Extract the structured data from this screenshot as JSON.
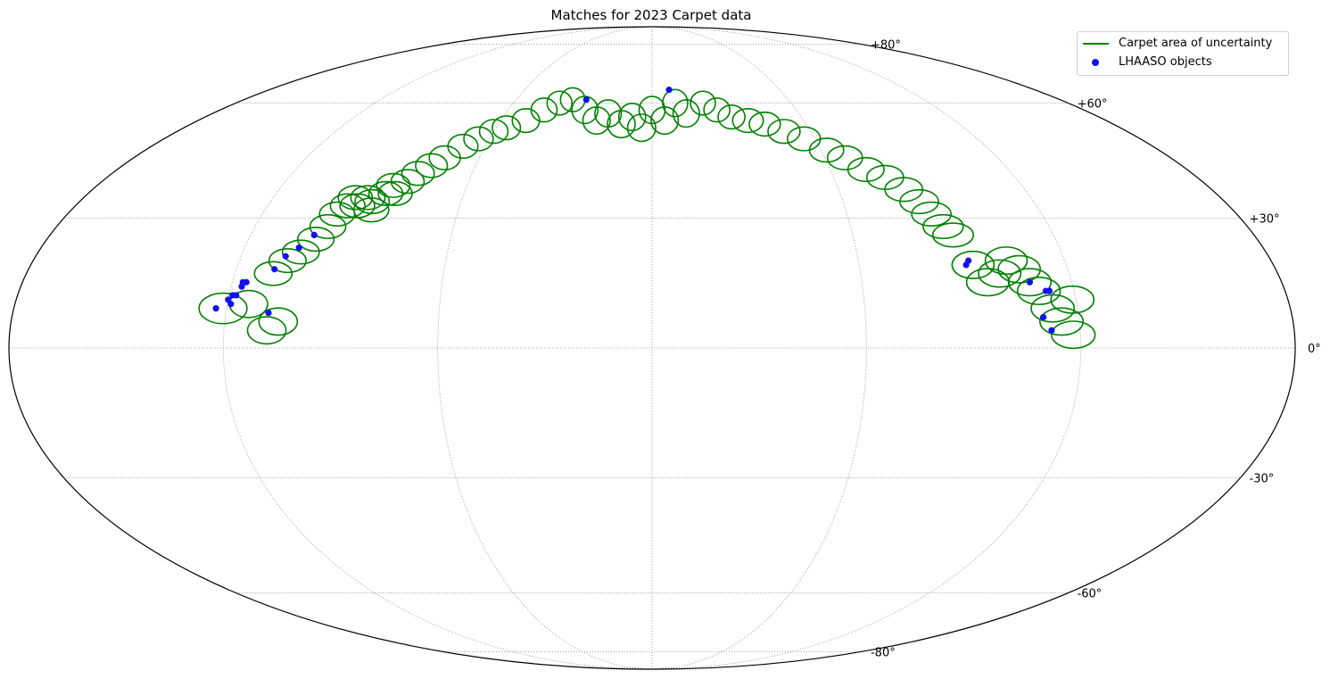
{
  "chart_data": {
    "type": "scatter",
    "projection": "mollweide",
    "title": "Matches for 2023 Carpet data",
    "lat_ticks": [
      "+80°",
      "+60°",
      "+30°",
      "0°",
      "-30°",
      "-60°",
      "-80°"
    ],
    "lat_tick_values": [
      80,
      60,
      30,
      0,
      -30,
      -60,
      -80
    ],
    "lon_gridlines_deg": [
      -180,
      -120,
      -60,
      0,
      60,
      120,
      180
    ],
    "grid": true,
    "legend_position": "top-right",
    "series": [
      {
        "name": "Carpet area of uncertainty",
        "kind": "ellipse",
        "color": "#008000",
        "ellipses": [
          {
            "lon": -121,
            "lat": 9,
            "w": 10,
            "h": 9
          },
          {
            "lon": -114,
            "lat": 10,
            "w": 8,
            "h": 8
          },
          {
            "lon": -105,
            "lat": 6,
            "w": 8,
            "h": 8
          },
          {
            "lon": -108,
            "lat": 4,
            "w": 8,
            "h": 8
          },
          {
            "lon": -109,
            "lat": 17,
            "w": 8,
            "h": 7
          },
          {
            "lon": -106,
            "lat": 20,
            "w": 8,
            "h": 7
          },
          {
            "lon": -103,
            "lat": 22,
            "w": 8,
            "h": 7
          },
          {
            "lon": -100,
            "lat": 25,
            "w": 8,
            "h": 7
          },
          {
            "lon": -98,
            "lat": 28,
            "w": 8,
            "h": 7
          },
          {
            "lon": -97,
            "lat": 31,
            "w": 8,
            "h": 7
          },
          {
            "lon": -95,
            "lat": 33,
            "w": 8,
            "h": 7
          },
          {
            "lon": -94,
            "lat": 35,
            "w": 8,
            "h": 7
          },
          {
            "lon": -92,
            "lat": 33,
            "w": 8,
            "h": 7
          },
          {
            "lon": -90,
            "lat": 35,
            "w": 8,
            "h": 7
          },
          {
            "lon": -88,
            "lat": 34,
            "w": 8,
            "h": 7
          },
          {
            "lon": -87,
            "lat": 32,
            "w": 8,
            "h": 7
          },
          {
            "lon": -85,
            "lat": 36,
            "w": 8,
            "h": 7
          },
          {
            "lon": -84,
            "lat": 38,
            "w": 8,
            "h": 7
          },
          {
            "lon": -82,
            "lat": 36,
            "w": 8,
            "h": 7
          },
          {
            "lon": -80,
            "lat": 39,
            "w": 8,
            "h": 7
          },
          {
            "lon": -78,
            "lat": 41,
            "w": 8,
            "h": 7
          },
          {
            "lon": -75,
            "lat": 43,
            "w": 8,
            "h": 7
          },
          {
            "lon": -72,
            "lat": 45,
            "w": 8,
            "h": 7
          },
          {
            "lon": -68,
            "lat": 48,
            "w": 8,
            "h": 7
          },
          {
            "lon": -64,
            "lat": 50,
            "w": 8,
            "h": 7
          },
          {
            "lon": -60,
            "lat": 52,
            "w": 8,
            "h": 7
          },
          {
            "lon": -56,
            "lat": 53,
            "w": 8,
            "h": 7
          },
          {
            "lon": -50,
            "lat": 55,
            "w": 8,
            "h": 7
          },
          {
            "lon": -45,
            "lat": 58,
            "w": 8,
            "h": 7
          },
          {
            "lon": -40,
            "lat": 60,
            "w": 8,
            "h": 7
          },
          {
            "lon": -35,
            "lat": 61,
            "w": 8,
            "h": 7
          },
          {
            "lon": -28,
            "lat": 58,
            "w": 8,
            "h": 8
          },
          {
            "lon": -22,
            "lat": 55,
            "w": 8,
            "h": 8
          },
          {
            "lon": -18,
            "lat": 57,
            "w": 8,
            "h": 8
          },
          {
            "lon": -12,
            "lat": 54,
            "w": 8,
            "h": 8
          },
          {
            "lon": -8,
            "lat": 56,
            "w": 8,
            "h": 8
          },
          {
            "lon": -4,
            "lat": 53,
            "w": 8,
            "h": 8
          },
          {
            "lon": 0,
            "lat": 58,
            "w": 8,
            "h": 8
          },
          {
            "lon": 5,
            "lat": 55,
            "w": 8,
            "h": 8
          },
          {
            "lon": 10,
            "lat": 60,
            "w": 8,
            "h": 8
          },
          {
            "lon": 14,
            "lat": 57,
            "w": 8,
            "h": 8
          },
          {
            "lon": 22,
            "lat": 60,
            "w": 8,
            "h": 7
          },
          {
            "lon": 27,
            "lat": 58,
            "w": 8,
            "h": 7
          },
          {
            "lon": 32,
            "lat": 56,
            "w": 8,
            "h": 7
          },
          {
            "lon": 38,
            "lat": 55,
            "w": 9,
            "h": 7
          },
          {
            "lon": 44,
            "lat": 54,
            "w": 9,
            "h": 7
          },
          {
            "lon": 50,
            "lat": 52,
            "w": 9,
            "h": 7
          },
          {
            "lon": 56,
            "lat": 50,
            "w": 9,
            "h": 7
          },
          {
            "lon": 62,
            "lat": 47,
            "w": 9,
            "h": 7
          },
          {
            "lon": 67,
            "lat": 45,
            "w": 9,
            "h": 7
          },
          {
            "lon": 72,
            "lat": 42,
            "w": 9,
            "h": 7
          },
          {
            "lon": 77,
            "lat": 40,
            "w": 9,
            "h": 7
          },
          {
            "lon": 81,
            "lat": 37,
            "w": 9,
            "h": 7
          },
          {
            "lon": 84,
            "lat": 34,
            "w": 9,
            "h": 7
          },
          {
            "lon": 86,
            "lat": 31,
            "w": 9,
            "h": 7
          },
          {
            "lon": 88,
            "lat": 28,
            "w": 9,
            "h": 7
          },
          {
            "lon": 90,
            "lat": 26,
            "w": 9,
            "h": 7
          },
          {
            "lon": 93,
            "lat": 19,
            "w": 9,
            "h": 8
          },
          {
            "lon": 96,
            "lat": 15,
            "w": 9,
            "h": 8
          },
          {
            "lon": 100,
            "lat": 17,
            "w": 9,
            "h": 8
          },
          {
            "lon": 103,
            "lat": 20,
            "w": 9,
            "h": 8
          },
          {
            "lon": 106,
            "lat": 18,
            "w": 9,
            "h": 8
          },
          {
            "lon": 108,
            "lat": 15,
            "w": 9,
            "h": 8
          },
          {
            "lon": 110,
            "lat": 13,
            "w": 9,
            "h": 8
          },
          {
            "lon": 113,
            "lat": 9,
            "w": 9,
            "h": 8
          },
          {
            "lon": 115,
            "lat": 6,
            "w": 9,
            "h": 8
          },
          {
            "lon": 119,
            "lat": 11,
            "w": 9,
            "h": 8
          },
          {
            "lon": 118,
            "lat": 3,
            "w": 9,
            "h": 8
          }
        ]
      },
      {
        "name": "LHAASO objects",
        "kind": "point",
        "color": "#1010f0",
        "points": [
          {
            "lon": -123,
            "lat": 9
          },
          {
            "lon": -120,
            "lat": 11
          },
          {
            "lon": -119,
            "lat": 12
          },
          {
            "lon": -118,
            "lat": 12
          },
          {
            "lon": -117,
            "lat": 14
          },
          {
            "lon": -117,
            "lat": 15
          },
          {
            "lon": -116,
            "lat": 15
          },
          {
            "lon": -119,
            "lat": 10
          },
          {
            "lon": -108,
            "lat": 8
          },
          {
            "lon": -109,
            "lat": 18
          },
          {
            "lon": -107,
            "lat": 21
          },
          {
            "lon": -104,
            "lat": 23
          },
          {
            "lon": -101,
            "lat": 26
          },
          {
            "lon": -29,
            "lat": 61
          },
          {
            "lon": 8,
            "lat": 64
          },
          {
            "lon": 108,
            "lat": 15
          },
          {
            "lon": 112,
            "lat": 13
          },
          {
            "lon": 113,
            "lat": 13
          },
          {
            "lon": 110,
            "lat": 7
          },
          {
            "lon": 112,
            "lat": 4
          },
          {
            "lon": 91,
            "lat": 19
          },
          {
            "lon": 92,
            "lat": 20
          }
        ]
      }
    ]
  }
}
